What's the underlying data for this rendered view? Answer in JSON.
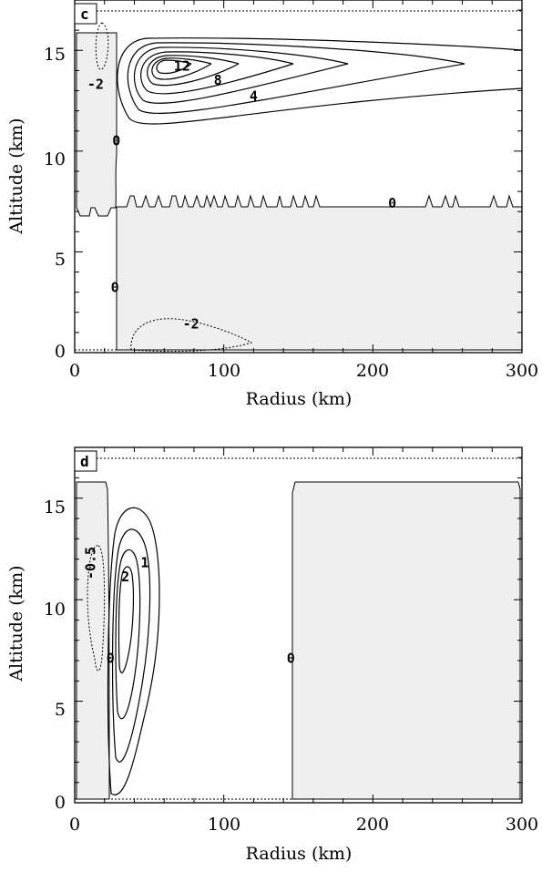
{
  "chart_data": [
    {
      "type": "contour",
      "panel_label": "c",
      "xlabel": "Radius (km)",
      "ylabel": "Altitude (km)",
      "xlim": [
        0,
        300
      ],
      "ylim": [
        0,
        17.5
      ],
      "x_ticks": [
        "0",
        "100",
        "200",
        "300"
      ],
      "y_ticks": [
        "0",
        "5",
        "10",
        "15"
      ],
      "shading": "negative values shaded light gray",
      "negative_contours": "dotted",
      "contour_labels": [
        {
          "text": "12",
          "x": 72,
          "y": 14.2
        },
        {
          "text": "8",
          "x": 96,
          "y": 13.5
        },
        {
          "text": "4",
          "x": 120,
          "y": 12.7
        },
        {
          "text": "-2",
          "x": 14,
          "y": 13.3
        },
        {
          "text": "0",
          "x": 28,
          "y": 10.5
        },
        {
          "text": "0",
          "x": 213,
          "y": 7.4
        },
        {
          "text": "0",
          "x": 27,
          "y": 3.2
        },
        {
          "text": "-2",
          "x": 78,
          "y": 1.4
        }
      ]
    },
    {
      "type": "contour",
      "panel_label": "d",
      "xlabel": "Radius (km)",
      "ylabel": "Altitude (km)",
      "xlim": [
        0,
        300
      ],
      "ylim": [
        0,
        17.5
      ],
      "x_ticks": [
        "0",
        "100",
        "200",
        "300"
      ],
      "y_ticks": [
        "0",
        "5",
        "10",
        "15"
      ],
      "shading": "negative values shaded light gray",
      "negative_contours": "dotted",
      "contour_labels": [
        {
          "text": "-0.5",
          "x": 11,
          "y": 11.8,
          "rotated": true
        },
        {
          "text": "2",
          "x": 34,
          "y": 11.1
        },
        {
          "text": "1",
          "x": 47,
          "y": 11.8
        },
        {
          "text": "0",
          "x": 24,
          "y": 7.1
        },
        {
          "text": "0",
          "x": 145,
          "y": 7.1
        }
      ]
    }
  ],
  "colors": {
    "shade": "#efefef",
    "line": "#000000"
  }
}
